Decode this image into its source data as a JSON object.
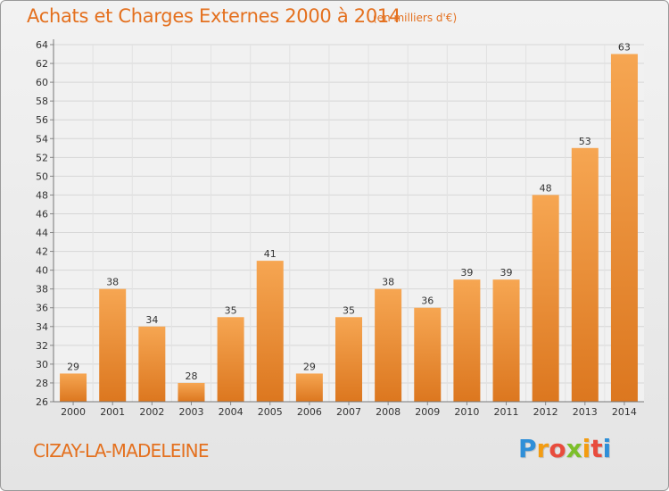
{
  "title": "Achats et Charges Externes 2000 à 2014",
  "unit_label": "(en milliers d'€)",
  "commune": "CIZAY-LA-MADELEINE",
  "logo": {
    "letters": [
      "P",
      "r",
      "o",
      "x",
      "i",
      "t",
      "i"
    ],
    "colors": [
      "#2f8fd8",
      "#f39c12",
      "#e84c3d",
      "#7cbf2a",
      "#f39c12",
      "#e84c3d",
      "#2f8fd8"
    ]
  },
  "colors": {
    "accent": "#e4701e",
    "bar_light": "#f6a652",
    "bar_dark": "#e07b23"
  },
  "chart_data": {
    "type": "bar",
    "categories": [
      "2000",
      "2001",
      "2002",
      "2003",
      "2004",
      "2005",
      "2006",
      "2007",
      "2008",
      "2009",
      "2010",
      "2011",
      "2012",
      "2013",
      "2014"
    ],
    "values": [
      29,
      38,
      34,
      28,
      35,
      41,
      29,
      35,
      38,
      36,
      39,
      39,
      48,
      53,
      63
    ],
    "ylim": [
      26,
      64
    ],
    "yticks": [
      26,
      28,
      30,
      32,
      34,
      36,
      38,
      40,
      42,
      44,
      46,
      48,
      50,
      52,
      54,
      56,
      58,
      60,
      62,
      64
    ],
    "grid": true,
    "data_labels": true
  }
}
